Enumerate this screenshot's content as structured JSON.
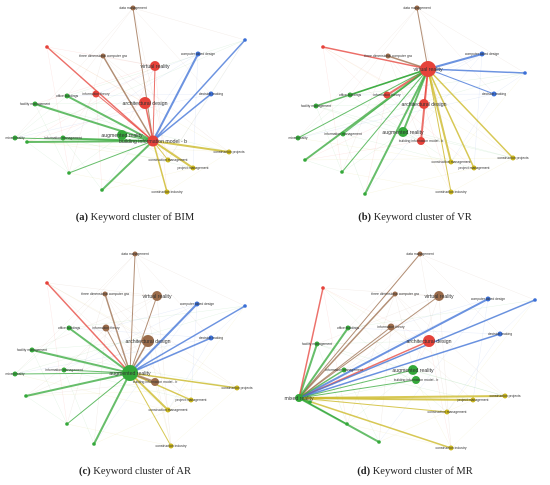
{
  "panels": [
    {
      "caption_tag": "(a)",
      "caption_text": " Keyword cluster of BIM",
      "hub": "building information model - b",
      "hub_color": "#e6423a",
      "labels": {
        "n0": "data management",
        "n1": "three dimensional computer gra",
        "n2": "computer aided design",
        "n3": "virtual reality",
        "n4": "decision making",
        "n5": "facility management",
        "n6": "information theory",
        "n7": "architectural design",
        "n8": "office buildings",
        "n9": "augmented reality",
        "n10": "information management",
        "n11": "construction projects",
        "n12": "construction management",
        "n13": "construction industry",
        "n14": "project management",
        "n15": "building information model - b",
        "n16": "mixed reality"
      }
    },
    {
      "caption_tag": "(b)",
      "caption_text": " Keyword cluster of VR",
      "hub": "virtual reality",
      "hub_color": "#e6423a",
      "labels": {
        "n0": "data management",
        "n1": "three dimensional computer gra",
        "n2": "computer aided design",
        "n3": "virtual reality",
        "n4": "decision making",
        "n5": "facility management",
        "n6": "information theory",
        "n7": "architectural design",
        "n8": "office buildings",
        "n9": "augmented reality",
        "n10": "information management",
        "n11": "construction projects",
        "n12": "construction management",
        "n13": "construction industry",
        "n14": "project management",
        "n15": "building information model - b",
        "n16": "mixed reality"
      }
    },
    {
      "caption_tag": "(c)",
      "caption_text": " Keyword cluster of AR",
      "hub": "augmented reality",
      "hub_color": "#34a83a",
      "labels": {
        "n0": "data management",
        "n1": "three dimensional computer gra",
        "n2": "computer aided design",
        "n3": "virtual reality",
        "n4": "decision making",
        "n5": "facility management",
        "n6": "information theory",
        "n7": "architectural design",
        "n8": "office buildings",
        "n9": "augmented reality",
        "n10": "information management",
        "n11": "construction projects",
        "n12": "construction management",
        "n13": "construction industry",
        "n14": "project management",
        "n15": "building information model - b",
        "n16": "mixed reality"
      }
    },
    {
      "caption_tag": "(d)",
      "caption_text": " Keyword cluster of MR",
      "hub": "mixed reality",
      "hub_color": "#34a83a",
      "labels": {
        "n0": "data management",
        "n1": "three dimensional computer gra",
        "n2": "computer aided design",
        "n3": "virtual reality",
        "n4": "decision making",
        "n5": "facility management",
        "n6": "information theory",
        "n7": "architectural design",
        "n8": "office buildings",
        "n9": "augmented reality",
        "n10": "information management",
        "n11": "construction projects",
        "n12": "construction management",
        "n13": "construction industry",
        "n14": "project management",
        "n15": "building information model - b",
        "n16": "mixed reality"
      }
    }
  ],
  "cluster_colors": {
    "red": "#e6423a",
    "green": "#34a83a",
    "blue": "#3b6fd6",
    "yellow": "#c9b51c",
    "brown": "#9a6b4a"
  }
}
